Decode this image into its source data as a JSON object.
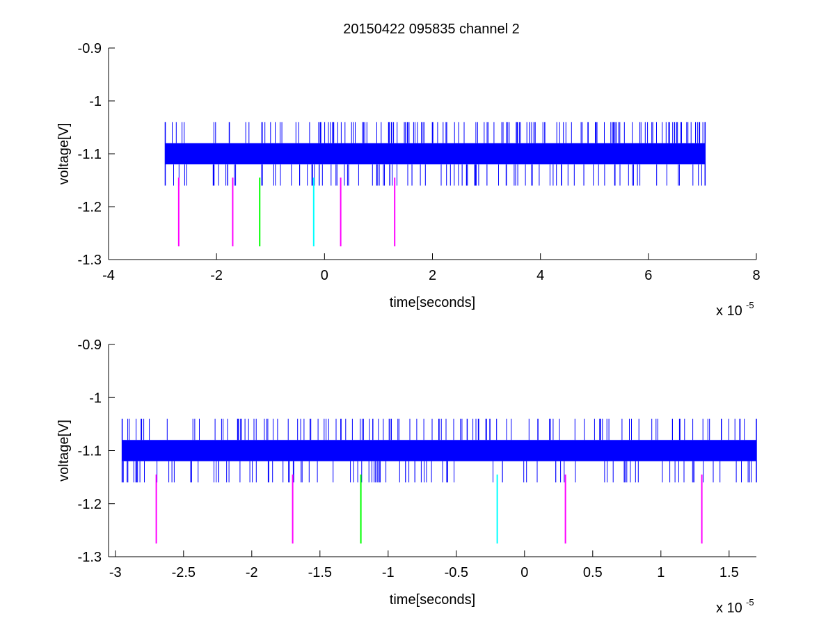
{
  "figure": {
    "title": "20150422 095835 channel 2"
  },
  "colors": {
    "signal": "#0000ff",
    "marker_magenta": "#ff00ff",
    "marker_green": "#00ff00",
    "marker_cyan": "#00ffff",
    "axes": "#000000",
    "background": "#ffffff"
  },
  "chart_data": [
    {
      "type": "line",
      "title": "20150422 095835 channel 2",
      "xlabel": "time[seconds]",
      "ylabel": "voltage[V]",
      "x_exponent_label": "x 10",
      "x_exponent": "-5",
      "xlim": [
        -4e-05,
        8e-05
      ],
      "ylim": [
        -1.3,
        -0.9
      ],
      "xticks": [
        -4e-05,
        -2e-05,
        0,
        2e-05,
        4e-05,
        6e-05,
        8e-05
      ],
      "xtick_labels": [
        "-4",
        "-2",
        "0",
        "2",
        "4",
        "6",
        "8"
      ],
      "yticks": [
        -0.9,
        -1.0,
        -1.1,
        -1.2,
        -1.3
      ],
      "ytick_labels": [
        "-0.9",
        "-1",
        "-1.1",
        "-1.2",
        "-1.3"
      ],
      "grid": false,
      "series": [
        {
          "kind": "noisy-band",
          "color": "#0000ff",
          "x_range": [
            -2.95e-05,
            7.05e-05
          ],
          "band_low": -1.12,
          "band_high": -1.08,
          "spike_high": -1.04,
          "spike_low": -1.16
        }
      ],
      "markers": [
        {
          "x": -2.7e-05,
          "y_top": -1.145,
          "y_bottom": -1.275,
          "color": "#ff00ff"
        },
        {
          "x": -1.7e-05,
          "y_top": -1.145,
          "y_bottom": -1.275,
          "color": "#ff00ff"
        },
        {
          "x": -1.2e-05,
          "y_top": -1.145,
          "y_bottom": -1.275,
          "color": "#00ff00"
        },
        {
          "x": -2e-06,
          "y_top": -1.145,
          "y_bottom": -1.275,
          "color": "#00ffff"
        },
        {
          "x": 3e-06,
          "y_top": -1.145,
          "y_bottom": -1.275,
          "color": "#ff00ff"
        },
        {
          "x": 1.3e-05,
          "y_top": -1.145,
          "y_bottom": -1.275,
          "color": "#ff00ff"
        }
      ]
    },
    {
      "type": "line",
      "title": "",
      "xlabel": "time[seconds]",
      "ylabel": "voltage[V]",
      "x_exponent_label": "x 10",
      "x_exponent": "-5",
      "xlim": [
        -3.05e-05,
        1.7e-05
      ],
      "ylim": [
        -1.3,
        -0.9
      ],
      "xticks": [
        -3e-05,
        -2.5e-05,
        -2e-05,
        -1.5e-05,
        -1e-05,
        -5e-06,
        0,
        5e-06,
        1e-05,
        1.5e-05
      ],
      "xtick_labels": [
        "-3",
        "-2.5",
        "-2",
        "-1.5",
        "-1",
        "-0.5",
        "0",
        "0.5",
        "1",
        "1.5"
      ],
      "yticks": [
        -0.9,
        -1.0,
        -1.1,
        -1.2,
        -1.3
      ],
      "ytick_labels": [
        "-0.9",
        "-1",
        "-1.1",
        "-1.2",
        "-1.3"
      ],
      "grid": false,
      "series": [
        {
          "kind": "noisy-band",
          "color": "#0000ff",
          "x_range": [
            -2.95e-05,
            1.7e-05
          ],
          "band_low": -1.12,
          "band_high": -1.08,
          "spike_high": -1.04,
          "spike_low": -1.16
        }
      ],
      "markers": [
        {
          "x": -2.7e-05,
          "y_top": -1.145,
          "y_bottom": -1.275,
          "color": "#ff00ff"
        },
        {
          "x": -1.7e-05,
          "y_top": -1.145,
          "y_bottom": -1.275,
          "color": "#ff00ff"
        },
        {
          "x": -1.2e-05,
          "y_top": -1.145,
          "y_bottom": -1.275,
          "color": "#00ff00"
        },
        {
          "x": -2e-06,
          "y_top": -1.145,
          "y_bottom": -1.275,
          "color": "#00ffff"
        },
        {
          "x": 3e-06,
          "y_top": -1.145,
          "y_bottom": -1.275,
          "color": "#ff00ff"
        },
        {
          "x": 1.3e-05,
          "y_top": -1.145,
          "y_bottom": -1.275,
          "color": "#ff00ff"
        }
      ]
    }
  ]
}
